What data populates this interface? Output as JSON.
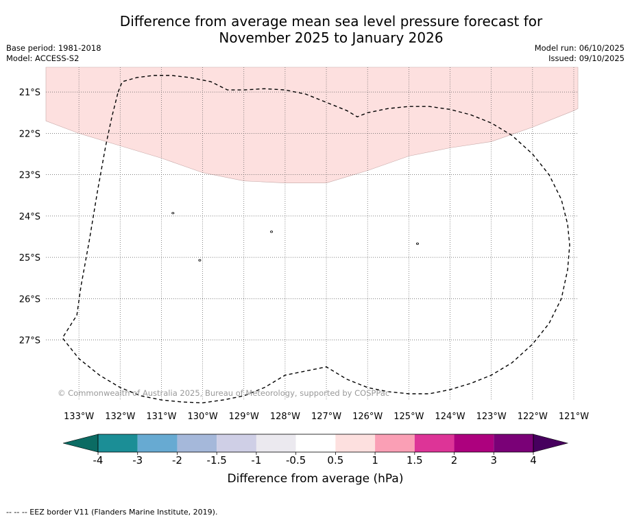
{
  "title": {
    "line1": "Difference from average mean sea level pressure forecast for",
    "line2": "November 2025 to January 2026"
  },
  "meta": {
    "base_period": "Base period: 1981-2018",
    "model": "Model: ACCESS-S2",
    "model_run": "Model run: 06/10/2025",
    "issued": "Issued: 09/10/2025"
  },
  "map": {
    "lon_range": [
      -133.8,
      -120.9
    ],
    "lat_range": [
      -28.45,
      -20.4
    ],
    "lon_ticks": [
      {
        "value": -133,
        "label": "133°W"
      },
      {
        "value": -132,
        "label": "132°W"
      },
      {
        "value": -131,
        "label": "131°W"
      },
      {
        "value": -130,
        "label": "130°W"
      },
      {
        "value": -129,
        "label": "129°W"
      },
      {
        "value": -128,
        "label": "128°W"
      },
      {
        "value": -127,
        "label": "127°W"
      },
      {
        "value": -126,
        "label": "126°W"
      },
      {
        "value": -125,
        "label": "125°W"
      },
      {
        "value": -124,
        "label": "124°W"
      },
      {
        "value": -123,
        "label": "123°W"
      },
      {
        "value": -122,
        "label": "122°W"
      },
      {
        "value": -121,
        "label": "121°W"
      }
    ],
    "lat_ticks": [
      {
        "value": -21,
        "label": "21°S"
      },
      {
        "value": -22,
        "label": "22°S"
      },
      {
        "value": -23,
        "label": "23°S"
      },
      {
        "value": -24,
        "label": "24°S"
      },
      {
        "value": -25,
        "label": "25°S"
      },
      {
        "value": -26,
        "label": "26°S"
      },
      {
        "value": -27,
        "label": "27°S"
      }
    ],
    "anomaly_region": {
      "category": "0.5 to 1 hPa",
      "color": "#fde0df",
      "boundary": [
        [
          -133.8,
          -21.7
        ],
        [
          -133.0,
          -22.0
        ],
        [
          -132.0,
          -22.3
        ],
        [
          -131.0,
          -22.6
        ],
        [
          -130.0,
          -22.95
        ],
        [
          -129.0,
          -23.15
        ],
        [
          -128.0,
          -23.2
        ],
        [
          -127.0,
          -23.2
        ],
        [
          -126.0,
          -22.9
        ],
        [
          -125.0,
          -22.55
        ],
        [
          -124.0,
          -22.35
        ],
        [
          -123.0,
          -22.2
        ],
        [
          -122.0,
          -21.85
        ],
        [
          -121.0,
          -21.45
        ],
        [
          -120.9,
          -21.4
        ]
      ]
    },
    "eez_border": [
      [
        -132.05,
        -21.0
      ],
      [
        -131.95,
        -20.75
      ],
      [
        -131.6,
        -20.65
      ],
      [
        -131.2,
        -20.6
      ],
      [
        -130.75,
        -20.6
      ],
      [
        -130.3,
        -20.65
      ],
      [
        -129.8,
        -20.75
      ],
      [
        -129.4,
        -20.95
      ],
      [
        -129.0,
        -20.95
      ],
      [
        -128.5,
        -20.92
      ],
      [
        -128.0,
        -20.95
      ],
      [
        -127.5,
        -21.05
      ],
      [
        -127.0,
        -21.25
      ],
      [
        -126.5,
        -21.45
      ],
      [
        -126.25,
        -21.6
      ],
      [
        -126.0,
        -21.5
      ],
      [
        -125.5,
        -21.4
      ],
      [
        -125.0,
        -21.35
      ],
      [
        -124.5,
        -21.35
      ],
      [
        -124.0,
        -21.42
      ],
      [
        -123.5,
        -21.55
      ],
      [
        -123.0,
        -21.75
      ],
      [
        -122.5,
        -22.05
      ],
      [
        -122.0,
        -22.5
      ],
      [
        -121.6,
        -23.0
      ],
      [
        -121.3,
        -23.6
      ],
      [
        -121.15,
        -24.2
      ],
      [
        -121.1,
        -24.7
      ],
      [
        -121.15,
        -25.3
      ],
      [
        -121.3,
        -26.0
      ],
      [
        -121.6,
        -26.6
      ],
      [
        -122.0,
        -27.1
      ],
      [
        -122.5,
        -27.55
      ],
      [
        -123.0,
        -27.85
      ],
      [
        -123.5,
        -28.05
      ],
      [
        -124.0,
        -28.2
      ],
      [
        -124.5,
        -28.3
      ],
      [
        -125.0,
        -28.3
      ],
      [
        -125.5,
        -28.25
      ],
      [
        -126.0,
        -28.15
      ],
      [
        -126.5,
        -27.95
      ],
      [
        -127.0,
        -27.65
      ],
      [
        -127.5,
        -27.75
      ],
      [
        -128.0,
        -27.85
      ],
      [
        -128.5,
        -28.15
      ],
      [
        -129.0,
        -28.35
      ],
      [
        -129.5,
        -28.45
      ],
      [
        -130.0,
        -28.52
      ],
      [
        -130.5,
        -28.5
      ],
      [
        -131.0,
        -28.45
      ],
      [
        -131.5,
        -28.35
      ],
      [
        -132.0,
        -28.15
      ],
      [
        -132.5,
        -27.85
      ],
      [
        -133.0,
        -27.45
      ],
      [
        -133.4,
        -26.95
      ],
      [
        -133.05,
        -26.4
      ],
      [
        -132.95,
        -25.7
      ],
      [
        -132.75,
        -24.6
      ],
      [
        -132.55,
        -23.4
      ],
      [
        -132.35,
        -22.3
      ],
      [
        -132.2,
        -21.6
      ],
      [
        -132.05,
        -21.0
      ]
    ],
    "islands": [
      {
        "lon": -130.72,
        "lat": -23.93,
        "name": "islet-1"
      },
      {
        "lon": -128.33,
        "lat": -24.38,
        "name": "islet-2"
      },
      {
        "lon": -124.79,
        "lat": -24.67,
        "name": "islet-3"
      },
      {
        "lon": -130.07,
        "lat": -25.07,
        "name": "islet-4"
      }
    ],
    "credit": "© Commonwealth of Australia 2025, Bureau of Meteorology, supported by COSPPac"
  },
  "colorbar": {
    "ticks": [
      "-4",
      "-3",
      "-2",
      "-1.5",
      "-1",
      "-0.5",
      "0.5",
      "1",
      "1.5",
      "2",
      "3",
      "4"
    ],
    "under_color": "#0b6b63",
    "over_color": "#47005e",
    "colors": [
      "#1b8e96",
      "#67aad2",
      "#a5b8da",
      "#cfcfe6",
      "#ebe9ef",
      "#ffffff",
      "#fde0df",
      "#fa9fb5",
      "#dd3497",
      "#ad017e",
      "#7a0177"
    ],
    "label": "Difference from average (hPa)"
  },
  "footer": "--  --  -- EEZ border V11 (Flanders Marine Institute, 2019)."
}
